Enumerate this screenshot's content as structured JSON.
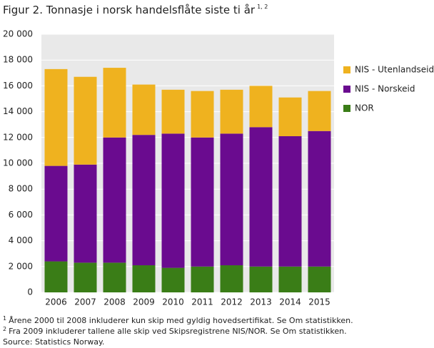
{
  "chart_data": {
    "type": "stacked-bar",
    "title": "Figur 2. Tonnasje i norsk handelsflåte siste ti år",
    "title_superscript": "1, 2",
    "categories": [
      "2006",
      "2007",
      "2008",
      "2009",
      "2010",
      "2011",
      "2012",
      "2013",
      "2014",
      "2015"
    ],
    "series": [
      {
        "name": "NOR",
        "color": "#3a7d17",
        "values": [
          2400,
          2300,
          2300,
          2100,
          1900,
          2000,
          2100,
          2000,
          2000,
          2000
        ]
      },
      {
        "name": "NIS - Norskeid",
        "color": "#6a0b8f",
        "values": [
          7400,
          7600,
          9700,
          10100,
          10400,
          10000,
          10200,
          10800,
          10100,
          10500
        ]
      },
      {
        "name": "NIS - Utenlandseid",
        "color": "#efb21f",
        "values": [
          7500,
          6800,
          5400,
          3900,
          3400,
          3600,
          3400,
          3200,
          3000,
          3100
        ]
      }
    ],
    "ylim": [
      0,
      20000
    ],
    "yticks": [
      0,
      {
        "value": 2000,
        "label": "2 000"
      },
      {
        "value": 4000,
        "label": "4 000"
      },
      {
        "value": 6000,
        "label": "6 000"
      },
      {
        "value": 8000,
        "label": "8 000"
      },
      {
        "value": 10000,
        "label": "10 000"
      },
      {
        "value": 12000,
        "label": "12 000"
      },
      {
        "value": 14000,
        "label": "14 000"
      },
      {
        "value": 16000,
        "label": "16 000"
      },
      {
        "value": 18000,
        "label": "18 000"
      },
      {
        "value": 20000,
        "label": "20 000"
      }
    ],
    "grid": true,
    "legend": "right",
    "footnotes": [
      {
        "marker": "1",
        "text": "Årene 2000 til 2008 inkluderer kun skip med gyldig hovedsertifikat. Se Om statistikken."
      },
      {
        "marker": "2",
        "text": "Fra 2009 inkluderer tallene alle skip ved Skipsregistrene NIS/NOR. Se Om statistikken."
      }
    ],
    "source": "Source: Statistics Norway."
  }
}
